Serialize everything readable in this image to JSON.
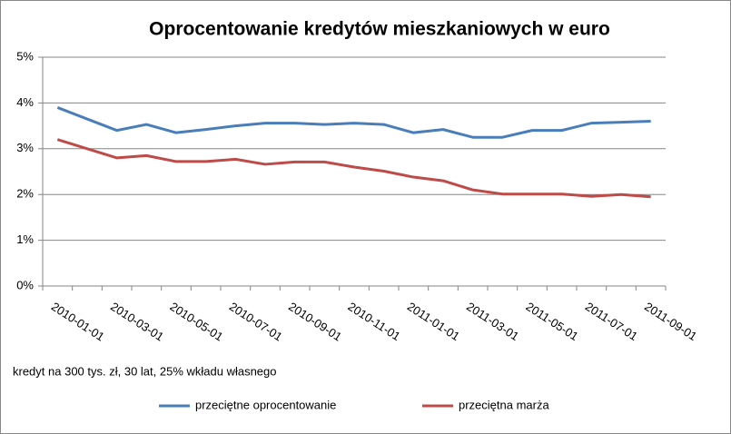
{
  "chart_data": {
    "type": "line",
    "title": "Oprocentowanie kredytów mieszkaniowych w euro",
    "categories": [
      "2010-01-01",
      null,
      "2010-03-01",
      null,
      "2010-05-01",
      null,
      "2010-07-01",
      null,
      "2010-09-01",
      null,
      "2010-11-01",
      null,
      "2011-01-01",
      null,
      "2011-03-01",
      null,
      "2011-05-01",
      null,
      "2011-07-01",
      null,
      "2011-09-01"
    ],
    "series": [
      {
        "name": "przeciętne oprocentowanie",
        "color": "#4a7ebb",
        "values": [
          3.9,
          3.65,
          3.4,
          3.53,
          3.35,
          3.42,
          3.5,
          3.56,
          3.56,
          3.53,
          3.56,
          3.53,
          3.35,
          3.42,
          3.25,
          3.25,
          3.4,
          3.4,
          3.56,
          3.58,
          3.6
        ]
      },
      {
        "name": "przeciętna marża",
        "color": "#be4b48",
        "values": [
          3.2,
          3.0,
          2.8,
          2.85,
          2.72,
          2.72,
          2.77,
          2.66,
          2.71,
          2.71,
          2.6,
          2.51,
          2.38,
          2.3,
          2.1,
          2.01,
          2.01,
          2.01,
          1.96,
          2.0,
          1.95
        ]
      }
    ],
    "ylim": [
      0,
      5
    ],
    "yticks": [
      {
        "value": 0,
        "label": "0%"
      },
      {
        "value": 1,
        "label": "1%"
      },
      {
        "value": 2,
        "label": "2%"
      },
      {
        "value": 3,
        "label": "3%"
      },
      {
        "value": 4,
        "label": "4%"
      },
      {
        "value": 5,
        "label": "5%"
      }
    ],
    "grid": true,
    "legend": "bottom",
    "annotation": "kredyt na 300 tys. zł, 30 lat, 25% wkładu własnego"
  }
}
